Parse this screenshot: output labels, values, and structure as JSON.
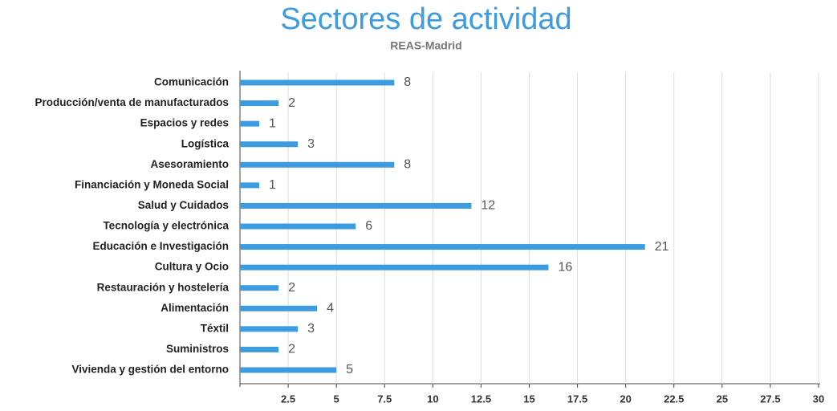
{
  "chart_data": {
    "type": "bar",
    "orientation": "horizontal",
    "title": "Sectores de actividad",
    "subtitle": "REAS-Madrid",
    "categories": [
      "Comunicación",
      "Producción/venta de manufacturados",
      "Espacios y redes",
      "Logística",
      "Asesoramiento",
      "Financiación y Moneda Social",
      "Salud y Cuidados",
      "Tecnología y electrónica",
      "Educación e Investigación",
      "Cultura y Ocio",
      "Restauración y hostelería",
      "Alimentación",
      "Téxtil",
      "Suministros",
      "Vivienda y gestión del entorno"
    ],
    "values": [
      8,
      2,
      1,
      3,
      8,
      1,
      12,
      6,
      21,
      16,
      2,
      4,
      3,
      2,
      5
    ],
    "color": "#3d9be0",
    "xlim": [
      0,
      30
    ],
    "xticks": [
      2.5,
      5,
      7.5,
      10,
      12.5,
      15,
      17.5,
      20,
      22.5,
      25,
      27.5,
      30
    ],
    "grid": true
  }
}
